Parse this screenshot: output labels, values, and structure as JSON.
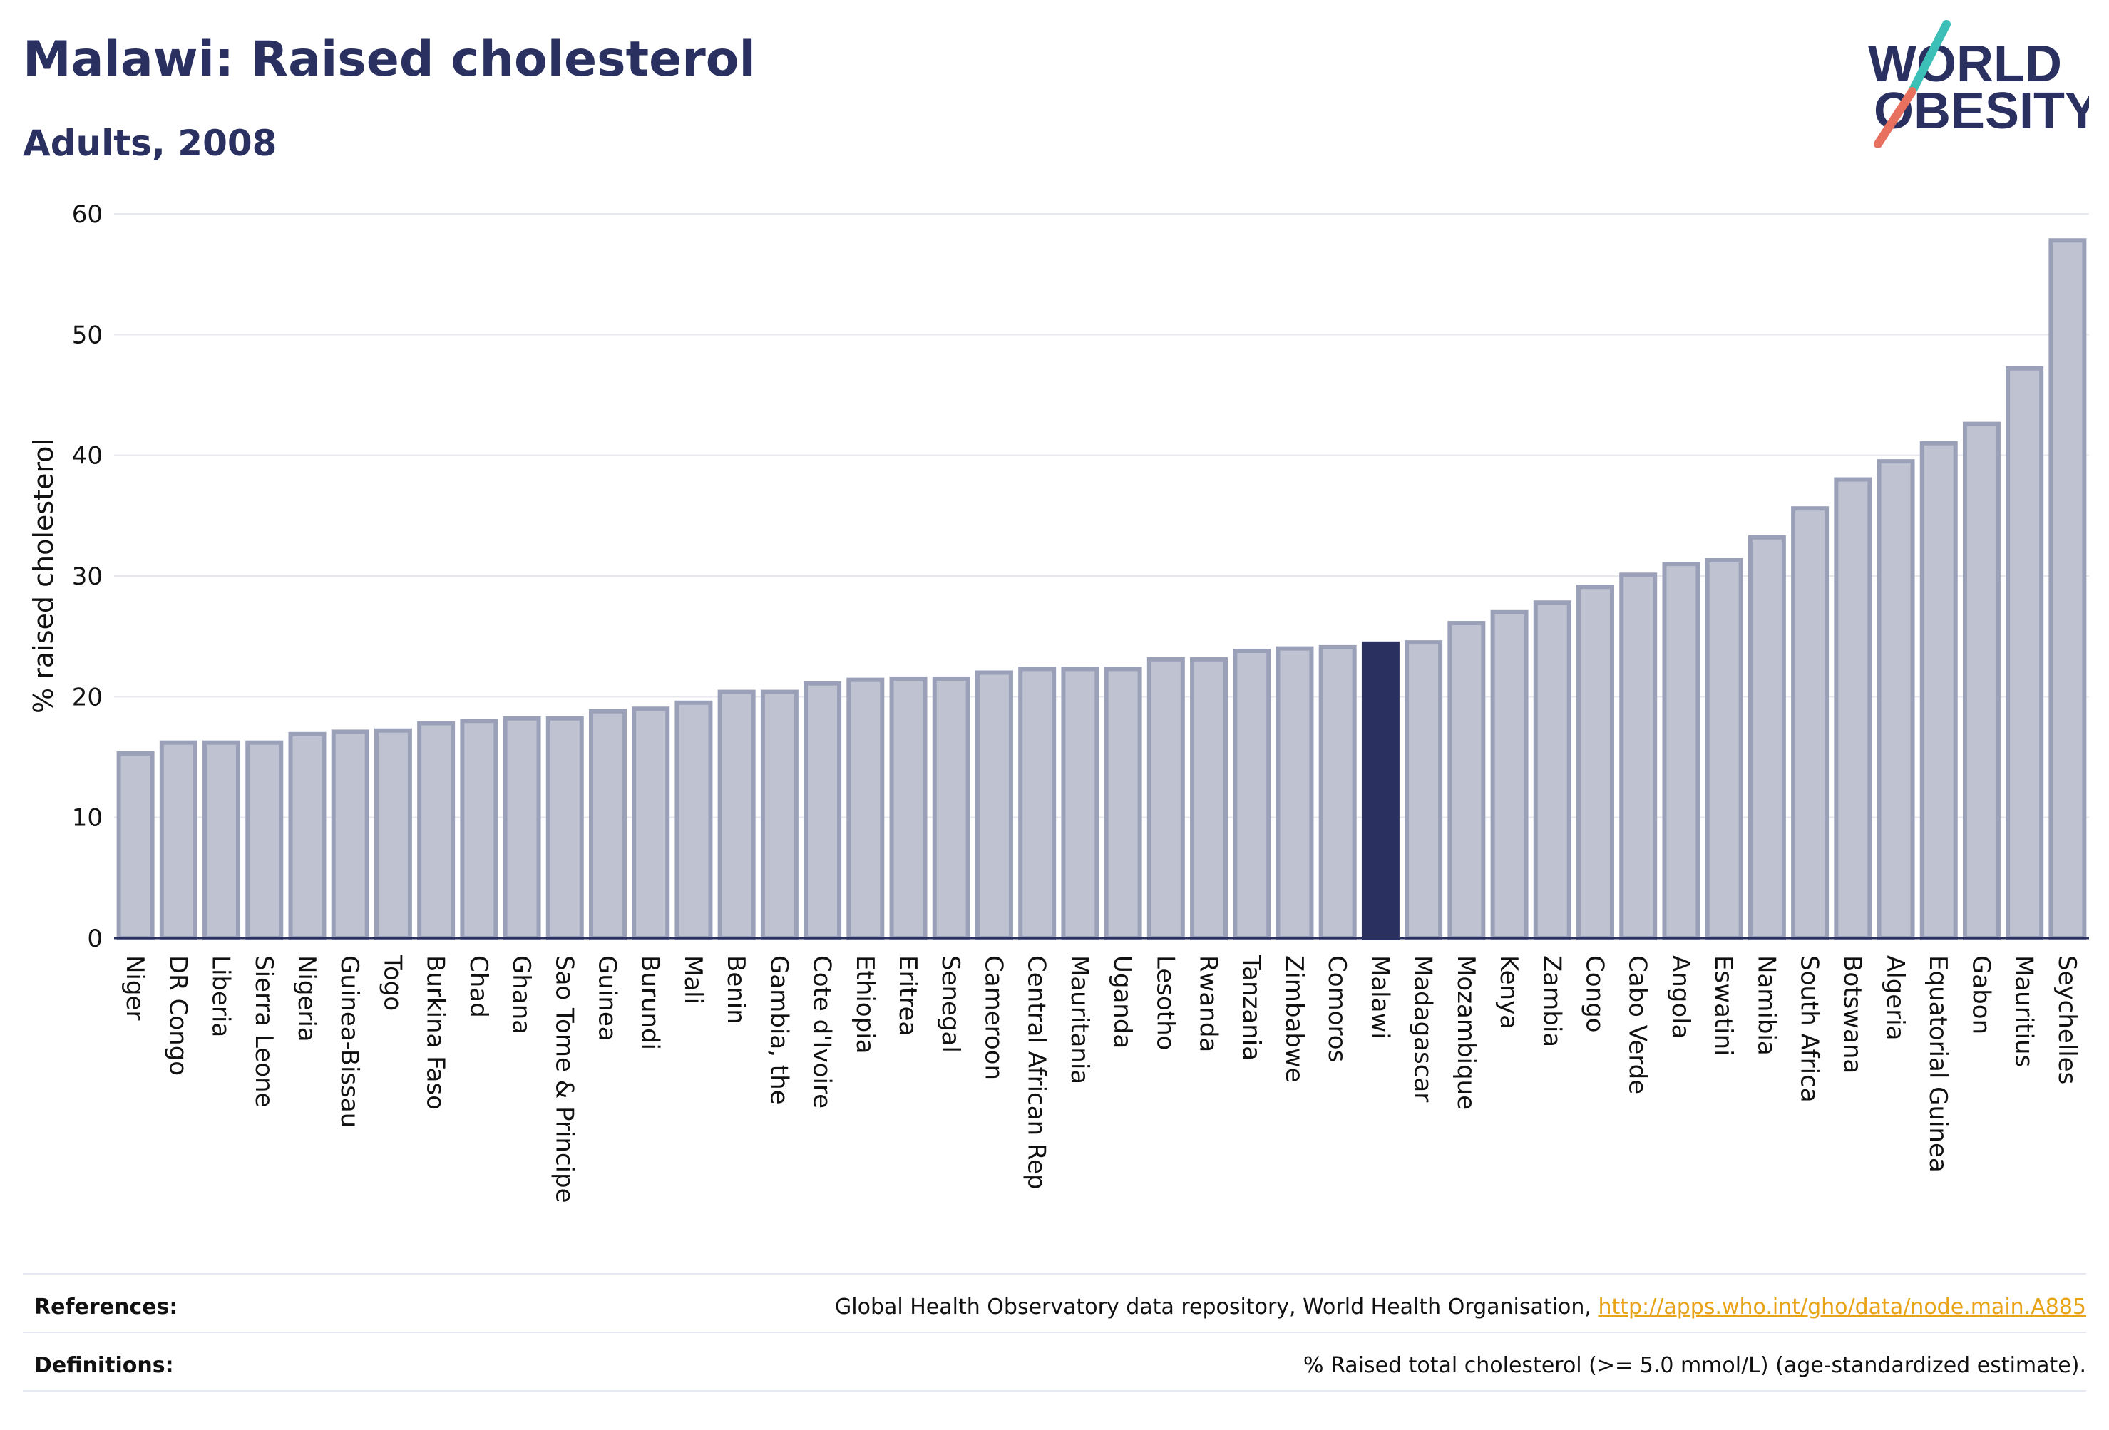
{
  "header": {
    "title": "Malawi: Raised cholesterol",
    "subtitle": "Adults, 2008"
  },
  "logo": {
    "line1": "WORLD",
    "line2": "OBESITY"
  },
  "chart_data": {
    "type": "bar",
    "ylabel": "% raised cholesterol",
    "xlabel": "",
    "ylim": [
      0,
      60
    ],
    "yticks": [
      0,
      10,
      20,
      30,
      40,
      50,
      60
    ],
    "grid": true,
    "highlight": "Malawi",
    "colors": {
      "bar": "#bfc3d1",
      "bar_edge": "#9aa0b8",
      "highlight": "#2a3160"
    },
    "categories": [
      "Niger",
      "DR Congo",
      "Liberia",
      "Sierra Leone",
      "Nigeria",
      "Guinea-Bissau",
      "Togo",
      "Burkina Faso",
      "Chad",
      "Ghana",
      "Sao Tome & Principe",
      "Guinea",
      "Burundi",
      "Mali",
      "Benin",
      "Gambia, the",
      "Cote d'Ivoire",
      "Ethiopia",
      "Eritrea",
      "Senegal",
      "Cameroon",
      "Central African Rep",
      "Mauritania",
      "Uganda",
      "Lesotho",
      "Rwanda",
      "Tanzania",
      "Zimbabwe",
      "Comoros",
      "Malawi",
      "Madagascar",
      "Mozambique",
      "Kenya",
      "Zambia",
      "Congo",
      "Cabo Verde",
      "Angola",
      "Eswatini",
      "Namibia",
      "South Africa",
      "Botswana",
      "Algeria",
      "Equatorial Guinea",
      "Gabon",
      "Mauritius",
      "Seychelles"
    ],
    "values": [
      15.3,
      16.2,
      16.2,
      16.2,
      16.9,
      17.1,
      17.2,
      17.8,
      18.0,
      18.2,
      18.2,
      18.8,
      19.0,
      19.5,
      20.4,
      20.4,
      21.1,
      21.4,
      21.5,
      21.5,
      22.0,
      22.3,
      22.3,
      22.3,
      23.1,
      23.1,
      23.8,
      24.0,
      24.1,
      24.4,
      24.5,
      26.1,
      27.0,
      27.8,
      29.1,
      30.1,
      31.0,
      31.3,
      33.2,
      35.6,
      38.0,
      39.5,
      41.0,
      42.6,
      47.2,
      57.8
    ]
  },
  "footer": {
    "references_label": "References:",
    "references_text": "Global Health Observatory data repository, World Health Organisation, ",
    "references_link": "http://apps.who.int/gho/data/node.main.A885",
    "definitions_label": "Definitions:",
    "definitions_text": "% Raised total cholesterol (>= 5.0 mmol/L) (age-standardized estimate)."
  }
}
